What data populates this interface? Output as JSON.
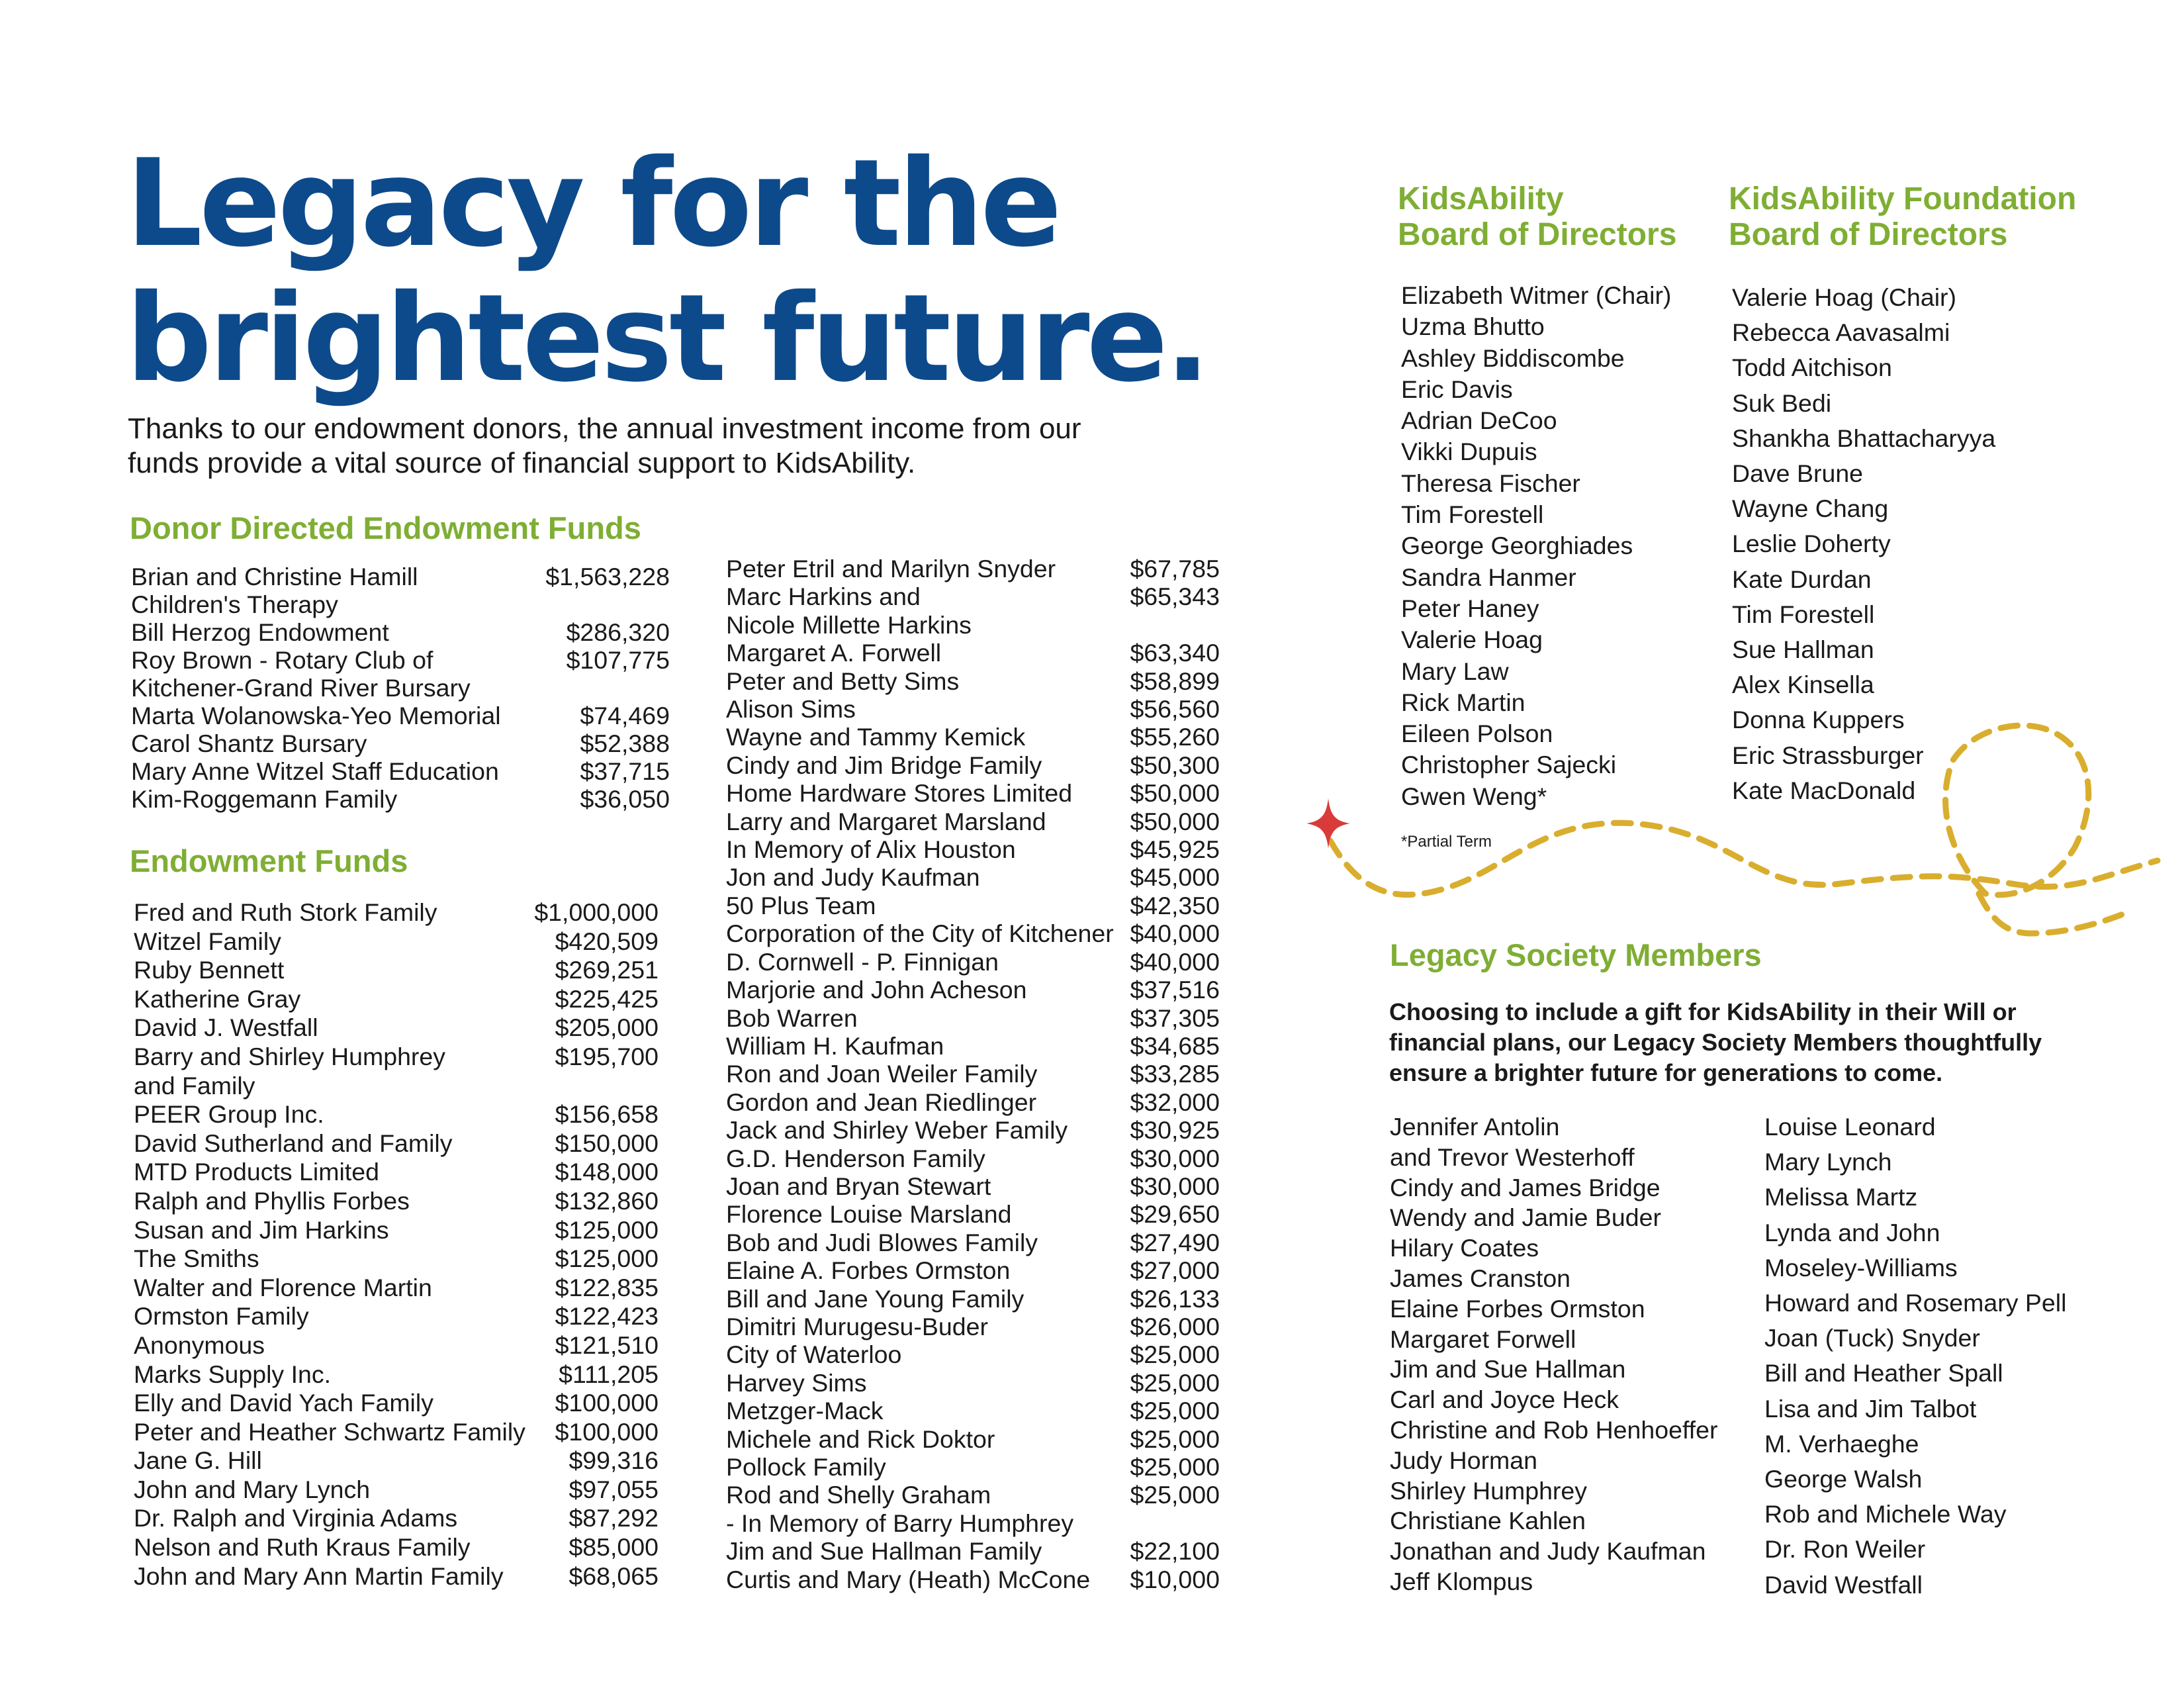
{
  "title_line1": "Legacy for the",
  "title_line2": "brightest future.",
  "intro": "Thanks to our endowment donors, the annual investment income from our funds provide a vital source of financial support to KidsAbility.",
  "donor_directed": {
    "heading": "Donor Directed Endowment Funds",
    "items": [
      {
        "name": "Brian and Christine Hamill\n   Children's Therapy",
        "amount": "$1,563,228"
      },
      {
        "name": "Bill Herzog Endowment",
        "amount": "$286,320"
      },
      {
        "name": "Roy Brown - Rotary Club of\n    Kitchener-Grand River Bursary",
        "amount": "$107,775"
      },
      {
        "name": "Marta Wolanowska-Yeo Memorial",
        "amount": "$74,469"
      },
      {
        "name": "Carol Shantz Bursary",
        "amount": "$52,388"
      },
      {
        "name": "Mary Anne Witzel Staff Education",
        "amount": "$37,715"
      },
      {
        "name": "Kim-Roggemann Family",
        "amount": "$36,050"
      }
    ]
  },
  "endowment": {
    "heading": "Endowment Funds",
    "col1": [
      {
        "name": "Fred and Ruth Stork Family",
        "amount": "$1,000,000"
      },
      {
        "name": "Witzel Family",
        "amount": "$420,509"
      },
      {
        "name": "Ruby Bennett",
        "amount": "$269,251"
      },
      {
        "name": "Katherine Gray",
        "amount": "$225,425"
      },
      {
        "name": "David J. Westfall",
        "amount": "$205,000"
      },
      {
        "name": "Barry and Shirley Humphrey\n   and Family",
        "amount": "$195,700"
      },
      {
        "name": "PEER Group Inc.",
        "amount": "$156,658"
      },
      {
        "name": "David Sutherland and Family",
        "amount": "$150,000"
      },
      {
        "name": "MTD Products Limited",
        "amount": "$148,000"
      },
      {
        "name": "Ralph and Phyllis Forbes",
        "amount": "$132,860"
      },
      {
        "name": "Susan and Jim Harkins",
        "amount": "$125,000"
      },
      {
        "name": "The Smiths",
        "amount": "$125,000"
      },
      {
        "name": "Walter and Florence Martin",
        "amount": "$122,835"
      },
      {
        "name": "Ormston Family",
        "amount": "$122,423"
      },
      {
        "name": "Anonymous",
        "amount": "$121,510"
      },
      {
        "name": "Marks Supply Inc.",
        "amount": "$111,205"
      },
      {
        "name": "Elly and David Yach Family",
        "amount": "$100,000"
      },
      {
        "name": "Peter and Heather Schwartz Family",
        "amount": "$100,000"
      },
      {
        "name": "Jane G. Hill",
        "amount": "$99,316"
      },
      {
        "name": "John and Mary Lynch",
        "amount": "$97,055"
      },
      {
        "name": "Dr. Ralph and Virginia Adams",
        "amount": "$87,292"
      },
      {
        "name": "Nelson and Ruth Kraus Family",
        "amount": "$85,000"
      },
      {
        "name": "John and Mary Ann Martin Family",
        "amount": "$68,065"
      }
    ],
    "col2": [
      {
        "name": "Peter Etril and Marilyn Snyder",
        "amount": "$67,785"
      },
      {
        "name": "Marc Harkins and\n   Nicole Millette Harkins",
        "amount": "$65,343"
      },
      {
        "name": "Margaret A. Forwell",
        "amount": "$63,340"
      },
      {
        "name": "Peter and Betty Sims",
        "amount": "$58,899"
      },
      {
        "name": "Alison Sims",
        "amount": "$56,560"
      },
      {
        "name": "Wayne and Tammy Kemick",
        "amount": "$55,260"
      },
      {
        "name": "Cindy and Jim Bridge Family",
        "amount": "$50,300"
      },
      {
        "name": "Home Hardware Stores Limited",
        "amount": "$50,000"
      },
      {
        "name": "Larry and Margaret Marsland",
        "amount": "$50,000"
      },
      {
        "name": "In Memory of Alix Houston",
        "amount": "$45,925"
      },
      {
        "name": "Jon and Judy Kaufman",
        "amount": "$45,000"
      },
      {
        "name": "50 Plus Team",
        "amount": "$42,350"
      },
      {
        "name": "Corporation of the City of Kitchener",
        "amount": "$40,000"
      },
      {
        "name": "D. Cornwell - P. Finnigan",
        "amount": "$40,000"
      },
      {
        "name": "Marjorie and John Acheson",
        "amount": "$37,516"
      },
      {
        "name": "Bob Warren",
        "amount": "$37,305"
      },
      {
        "name": "William H. Kaufman",
        "amount": "$34,685"
      },
      {
        "name": "Ron and Joan Weiler Family",
        "amount": "$33,285"
      },
      {
        "name": "Gordon and Jean Riedlinger",
        "amount": "$32,000"
      },
      {
        "name": "Jack and Shirley Weber Family",
        "amount": "$30,925"
      },
      {
        "name": "G.D. Henderson Family",
        "amount": "$30,000"
      },
      {
        "name": "Joan and Bryan Stewart",
        "amount": "$30,000"
      },
      {
        "name": "Florence Louise Marsland",
        "amount": "$29,650"
      },
      {
        "name": "Bob and Judi Blowes Family",
        "amount": "$27,490"
      },
      {
        "name": "Elaine A. Forbes Ormston",
        "amount": "$27,000"
      },
      {
        "name": "Bill and Jane Young Family",
        "amount": "$26,133"
      },
      {
        "name": "Dimitri Murugesu-Buder",
        "amount": "$26,000"
      },
      {
        "name": "City of Waterloo",
        "amount": "$25,000"
      },
      {
        "name": "Harvey Sims",
        "amount": "$25,000"
      },
      {
        "name": "Metzger-Mack",
        "amount": "$25,000"
      },
      {
        "name": "Michele and Rick Doktor",
        "amount": "$25,000"
      },
      {
        "name": "Pollock Family",
        "amount": "$25,000"
      },
      {
        "name": "Rod and Shelly Graham\n  - In Memory of Barry Humphrey",
        "amount": "$25,000"
      },
      {
        "name": "Jim and Sue Hallman Family",
        "amount": "$22,100"
      },
      {
        "name": "Curtis and Mary (Heath) McCone",
        "amount": "$10,000"
      }
    ]
  },
  "board": {
    "heading_line1": "KidsAbility",
    "heading_line2": "Board of Directors",
    "members": [
      "Elizabeth Witmer (Chair)",
      "Uzma Bhutto",
      "Ashley Biddiscombe",
      "Eric Davis",
      "Adrian DeCoo",
      "Vikki Dupuis",
      "Theresa Fischer",
      "Tim Forestell",
      "George Georghiades",
      "Sandra Hanmer",
      "Peter Haney",
      "Valerie Hoag",
      "Mary Law",
      "Rick Martin",
      "Eileen Polson",
      "Christopher Sajecki",
      "Gwen Weng*"
    ],
    "footnote": "*Partial Term"
  },
  "foundation_board": {
    "heading_line1": "KidsAbility Foundation",
    "heading_line2": "Board of Directors",
    "members": [
      "Valerie Hoag (Chair)",
      "Rebecca Aavasalmi",
      "Todd Aitchison",
      "Suk Bedi",
      "Shankha Bhattacharyya",
      "Dave Brune",
      "Wayne Chang",
      "Leslie Doherty",
      "Kate Durdan",
      "Tim Forestell",
      "Sue Hallman",
      "Alex Kinsella",
      "Donna Kuppers",
      "Eric Strassburger",
      "Kate MacDonald"
    ]
  },
  "legacy_society": {
    "heading": "Legacy Society Members",
    "intro": "Choosing to include a gift for KidsAbility in their Will or financial plans, our Legacy Society Members thoughtfully ensure a brighter future for generations to come.",
    "col1": [
      "Jennifer Antolin\n   and Trevor Westerhoff",
      "Cindy and James Bridge",
      "Wendy and Jamie Buder",
      "Hilary Coates",
      "James Cranston",
      "Elaine Forbes Ormston",
      "Margaret Forwell",
      "Jim and Sue Hallman",
      "Carl and Joyce Heck",
      "Christine and Rob Henhoeffer",
      "Judy Horman",
      "Shirley Humphrey",
      "Christiane Kahlen",
      "Jonathan and Judy Kaufman",
      "Jeff Klompus"
    ],
    "col2": [
      "Louise Leonard",
      "Mary Lynch",
      "Melissa Martz",
      "Lynda and John\n   Moseley-Williams",
      "Howard and Rosemary Pell",
      "Joan (Tuck) Snyder",
      "Bill and Heather Spall",
      "Lisa and Jim Talbot",
      "M. Verhaeghe",
      "George Walsh",
      "Rob and Michele Way",
      "Dr. Ron Weiler",
      "David Westfall"
    ]
  },
  "colors": {
    "title_blue": "#0d4a8b",
    "heading_green": "#7fae34",
    "path_gold": "#d9ae2e",
    "star_red": "#d93a3a"
  },
  "icons": [
    "sparkle-star-icon",
    "dashed-path-decoration"
  ]
}
